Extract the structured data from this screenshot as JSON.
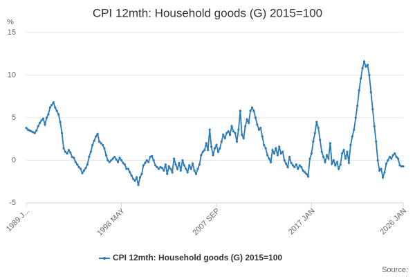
{
  "chart_data": {
    "type": "line",
    "title": "CPI 12mth: Household goods (G) 2015=100",
    "y_label": "%",
    "source": "Source:",
    "categories": [
      "1989 J...",
      null,
      null,
      null,
      null,
      null,
      null,
      null,
      null,
      null,
      null,
      null,
      null,
      null,
      null,
      null,
      null,
      null,
      null,
      null,
      null,
      null,
      null,
      null,
      null,
      null,
      null,
      null,
      null,
      null,
      null,
      null,
      null,
      null,
      null,
      null,
      null,
      null,
      null,
      null,
      null,
      null,
      null,
      null,
      null,
      null,
      null,
      null,
      null,
      null,
      null,
      null,
      null,
      null,
      null,
      null,
      "1998 MAY",
      null,
      null,
      null,
      null,
      null,
      null,
      null,
      null,
      null,
      null,
      null,
      null,
      null,
      null,
      null,
      null,
      null,
      null,
      null,
      null,
      null,
      null,
      null,
      null,
      null,
      null,
      null,
      null,
      null,
      null,
      null,
      null,
      null,
      null,
      null,
      null,
      null,
      null,
      null,
      null,
      null,
      null,
      null,
      null,
      null,
      null,
      null,
      null,
      null,
      null,
      null,
      null,
      null,
      null,
      null,
      "2007 SEP",
      null,
      null,
      null,
      null,
      null,
      null,
      null,
      null,
      null,
      null,
      null,
      null,
      null,
      null,
      null,
      null,
      null,
      null,
      null,
      null,
      null,
      null,
      null,
      null,
      null,
      null,
      null,
      null,
      null,
      null,
      null,
      null,
      null,
      null,
      null,
      null,
      null,
      null,
      null,
      null,
      null,
      null,
      null,
      null,
      null,
      null,
      null,
      null,
      null,
      null,
      null,
      null,
      null,
      null,
      null,
      "2017 JAN",
      null,
      null,
      null,
      null,
      null,
      null,
      null,
      null,
      null,
      null,
      null,
      null,
      null,
      null,
      null,
      null,
      null,
      null,
      null,
      null,
      null,
      null,
      null,
      null,
      null,
      null,
      null,
      null,
      null,
      null,
      null,
      null,
      null,
      null,
      null,
      null,
      null,
      null,
      null,
      null,
      null,
      null,
      null,
      null,
      null,
      null,
      null,
      null,
      null,
      null,
      null,
      null,
      null,
      "2026 JAN"
    ],
    "series": [
      {
        "name": "CPI 12mth: Household goods (G) 2015=100",
        "color": "#2a7ab8",
        "values": [
          3.8,
          3.6,
          3.5,
          3.4,
          3.3,
          3.2,
          3.5,
          4.0,
          4.4,
          4.7,
          4.9,
          4.2,
          5.0,
          5.4,
          6.2,
          6.5,
          6.8,
          6.2,
          5.8,
          5.4,
          4.5,
          3.2,
          1.4,
          1.0,
          0.8,
          1.2,
          0.9,
          0.4,
          0.3,
          -0.2,
          -0.5,
          -0.8,
          -1.0,
          -1.5,
          -1.2,
          -0.9,
          -0.5,
          0.4,
          1.0,
          1.8,
          2.3,
          2.8,
          3.1,
          2.2,
          2.0,
          1.8,
          1.4,
          0.6,
          0.0,
          -0.2,
          0.0,
          0.2,
          0.4,
          0.1,
          -0.2,
          0.3,
          0.0,
          -0.3,
          -0.5,
          -1.0,
          -1.0,
          -1.4,
          -1.8,
          -2.2,
          -2.4,
          -2.0,
          -2.9,
          -2.0,
          -1.6,
          -0.6,
          -0.3,
          0.0,
          -0.2,
          0.4,
          0.5,
          0.0,
          -0.6,
          -0.8,
          -1.0,
          -0.8,
          -0.9,
          -1.2,
          -0.5,
          -1.6,
          -0.7,
          -1.0,
          -1.4,
          0.2,
          -0.5,
          -1.0,
          -0.3,
          -1.2,
          0.0,
          -0.6,
          -1.0,
          -1.4,
          -0.6,
          -1.0,
          -0.4,
          -1.2,
          -1.6,
          -1.0,
          -0.5,
          0.6,
          1.0,
          1.2,
          2.0,
          1.2,
          3.6,
          1.6,
          0.6,
          1.4,
          1.8,
          1.0,
          1.4,
          2.2,
          3.0,
          2.6,
          3.2,
          3.4,
          3.0,
          4.0,
          3.4,
          3.2,
          2.2,
          3.6,
          5.8,
          3.0,
          2.6,
          4.0,
          4.8,
          4.4,
          5.8,
          6.2,
          5.8,
          5.0,
          4.2,
          3.6,
          3.8,
          2.8,
          1.8,
          1.4,
          0.6,
          0.2,
          -0.2,
          1.2,
          0.8,
          1.4,
          0.6,
          1.6,
          0.8,
          1.0,
          0.0,
          -0.4,
          -0.8,
          0.4,
          -0.3,
          -0.6,
          -0.8,
          -0.5,
          -1.0,
          -0.6,
          -0.8,
          -1.2,
          -1.4,
          -1.6,
          -1.9,
          0.2,
          0.8,
          2.2,
          3.2,
          4.5,
          3.8,
          2.4,
          1.0,
          0.4,
          -0.2,
          0.6,
          0.2,
          2.0,
          -0.4,
          0.0,
          -0.6,
          -0.2,
          -1.0,
          -0.5,
          0.8,
          1.2,
          0.2,
          1.0,
          -0.3,
          1.8,
          2.8,
          3.6,
          5.0,
          6.4,
          8.2,
          9.6,
          10.8,
          11.6,
          11.0,
          11.2,
          10.0,
          8.0,
          6.0,
          4.0,
          2.2,
          0.0,
          -1.2,
          -1.0,
          -2.0,
          -1.4,
          -0.4,
          0.0,
          0.4,
          0.2,
          0.6,
          0.8,
          0.4,
          0.2,
          -0.6,
          -0.7,
          -0.7
        ]
      }
    ],
    "ylim": [
      -5,
      15
    ],
    "yticks": [
      -5,
      0,
      5,
      10,
      15
    ],
    "grid": true,
    "legend": "bottom"
  }
}
